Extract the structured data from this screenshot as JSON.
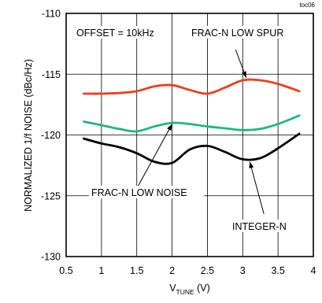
{
  "figure_id": "toc06",
  "chart_data": {
    "type": "line",
    "xlabel_main": "V",
    "xlabel_sub": "TUNE",
    "xlabel_unit": " (V)",
    "ylabel": "NORMALIZED 1/f NOISE (dBc/Hz)",
    "xlim": [
      0.5,
      4
    ],
    "ylim": [
      -130,
      -110
    ],
    "x_ticks": [
      "0.5",
      "1",
      "1.5",
      "2",
      "2.5",
      "3",
      "3.5",
      "4"
    ],
    "y_ticks": [
      "-110",
      "-115",
      "-120",
      "-125",
      "-130"
    ],
    "grid": true,
    "annotations": {
      "offset": "OFFSET = 10kHz",
      "frac_n_low_spur": "FRAC-N LOW SPUR",
      "frac_n_low_noise": "FRAC-N LOW NOISE",
      "integer_n": "INTEGER-N"
    },
    "series": [
      {
        "name": "FRAC-N LOW SPUR",
        "color": "#e8401c",
        "x": [
          0.75,
          1.0,
          1.25,
          1.5,
          1.75,
          2.0,
          2.25,
          2.5,
          2.75,
          3.0,
          3.25,
          3.5,
          3.8
        ],
        "y": [
          -116.6,
          -116.6,
          -116.55,
          -116.4,
          -116.0,
          -115.9,
          -116.3,
          -116.6,
          -116.1,
          -115.5,
          -115.5,
          -115.8,
          -116.4
        ]
      },
      {
        "name": "FRAC-N LOW NOISE",
        "color": "#1db87a",
        "x": [
          0.75,
          1.0,
          1.25,
          1.5,
          1.75,
          2.0,
          2.25,
          2.5,
          2.75,
          3.0,
          3.25,
          3.5,
          3.8
        ],
        "y": [
          -118.9,
          -119.2,
          -119.5,
          -119.7,
          -119.3,
          -119.0,
          -119.1,
          -119.3,
          -119.45,
          -119.6,
          -119.5,
          -119.1,
          -118.4
        ]
      },
      {
        "name": "INTEGER-N",
        "color": "#000000",
        "x": [
          0.75,
          1.0,
          1.25,
          1.5,
          1.75,
          2.0,
          2.25,
          2.5,
          2.75,
          3.0,
          3.25,
          3.5,
          3.8
        ],
        "y": [
          -120.3,
          -120.7,
          -121.0,
          -121.5,
          -122.2,
          -122.3,
          -121.2,
          -120.9,
          -121.4,
          -122.0,
          -121.9,
          -121.1,
          -119.9
        ]
      }
    ],
    "arrows": [
      {
        "from": [
          2.9,
          -113.0
        ],
        "to": [
          3.05,
          -115.3
        ]
      },
      {
        "from": [
          1.5,
          -124.4
        ],
        "to": [
          2.0,
          -119.1
        ]
      },
      {
        "from": [
          3.3,
          -126.5
        ],
        "to": [
          3.1,
          -122.2
        ]
      }
    ]
  }
}
